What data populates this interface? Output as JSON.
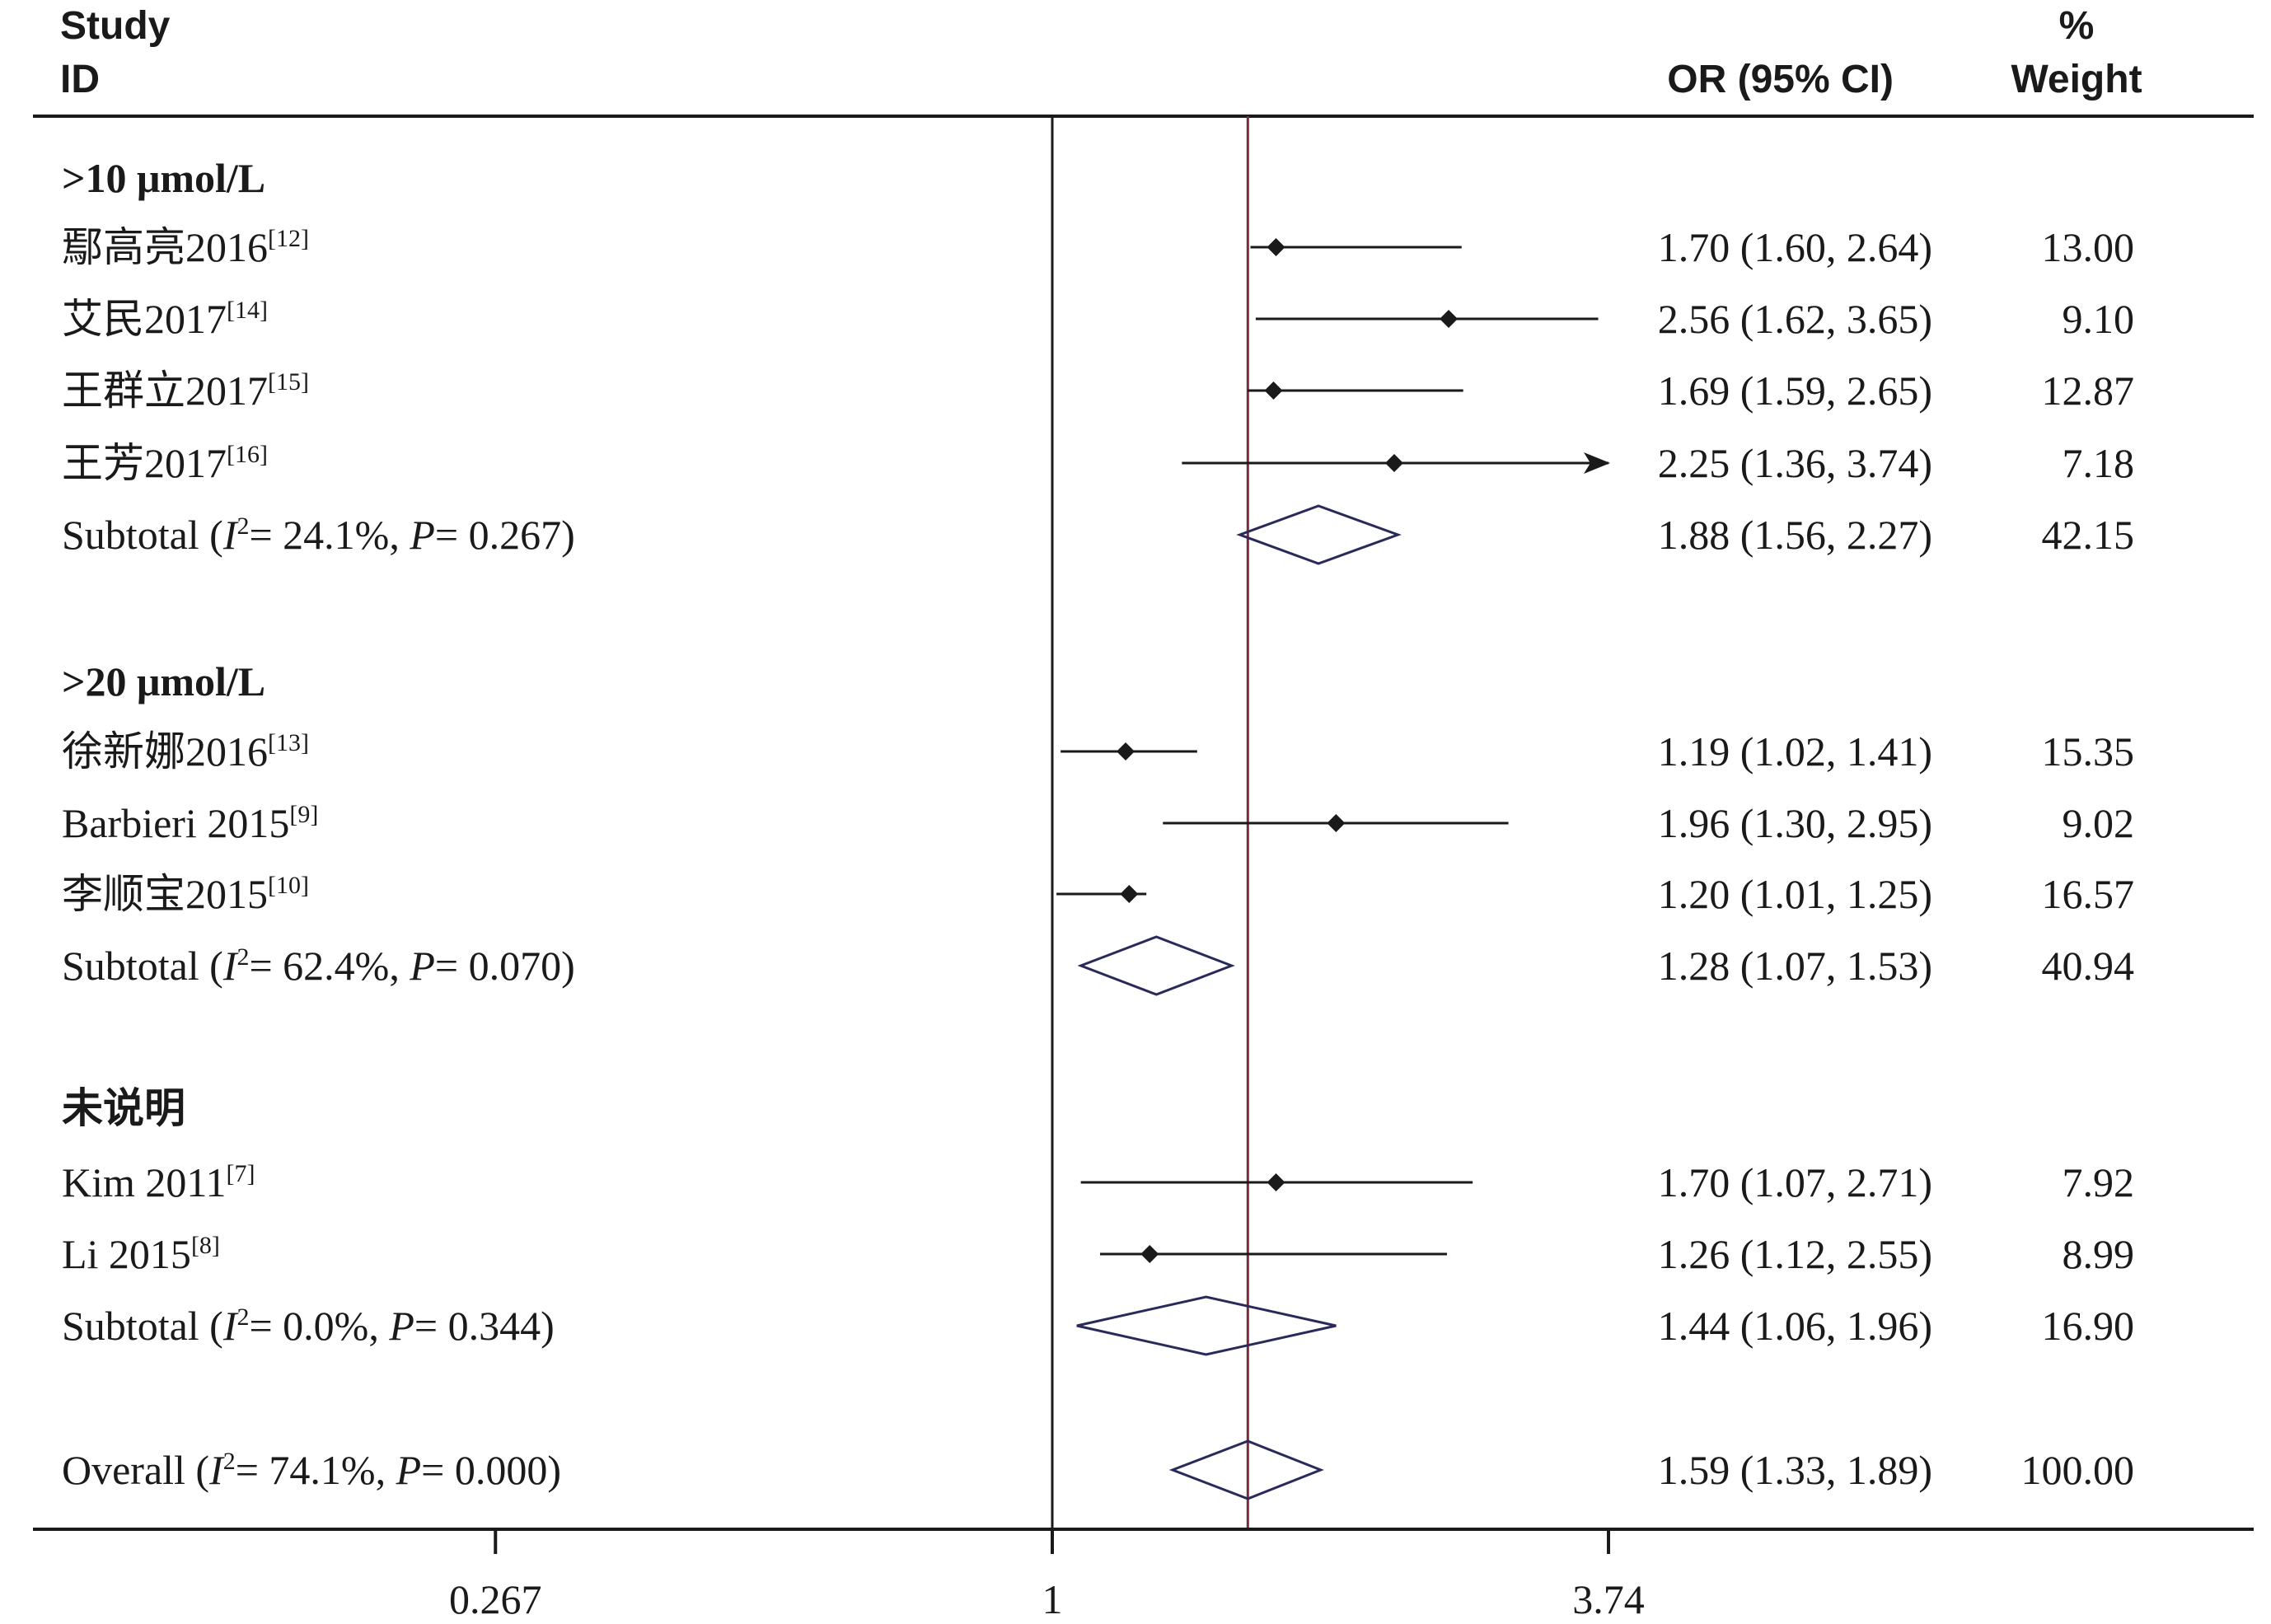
{
  "header": {
    "study_line1": "Study",
    "study_line2": "ID",
    "or_col": "OR (95% CI)",
    "weight_line1": "%",
    "weight_line2": "Weight"
  },
  "colors": {
    "ink": "#1a1a1a",
    "diamond_stroke": "#2a2a5a",
    "overall_line": "#7b2a3a"
  },
  "chart_data": {
    "type": "forest",
    "title": "",
    "xlabel": "",
    "ylabel": "",
    "x_ticks": [
      "0.267",
      "1",
      "3.74"
    ],
    "x_scale": "log",
    "xlim": [
      0.267,
      3.74
    ],
    "null_line": 1,
    "overall_estimate": 1.59,
    "groups": [
      {
        "name": ">10 μmol/L",
        "studies": [
          {
            "label": "鄢高亮2016",
            "ref": "[12]",
            "or": 1.7,
            "lo": 1.6,
            "hi": 2.64,
            "or_text": "1.70 (1.60, 2.64)",
            "weight": "13.00"
          },
          {
            "label": "艾民2017",
            "ref": "[14]",
            "or": 2.56,
            "lo": 1.62,
            "hi": 3.65,
            "or_text": "2.56 (1.62, 3.65)",
            "weight": "9.10"
          },
          {
            "label": "王群立2017",
            "ref": "[15]",
            "or": 1.69,
            "lo": 1.59,
            "hi": 2.65,
            "or_text": "1.69 (1.59, 2.65)",
            "weight": "12.87"
          },
          {
            "label": "王芳2017",
            "ref": "[16]",
            "or": 2.25,
            "lo": 1.36,
            "hi": 3.74,
            "or_text": "2.25 (1.36, 3.74)",
            "weight": "7.18",
            "arrow": true
          }
        ],
        "subtotal": {
          "prefix": "Subtotal  (",
          "i2": "= 24.1%, ",
          "p": "= 0.267)",
          "or": 1.88,
          "lo": 1.56,
          "hi": 2.27,
          "or_text": "1.88 (1.56, 2.27)",
          "weight": "42.15"
        }
      },
      {
        "name": ">20 μmol/L",
        "studies": [
          {
            "label": "徐新娜2016",
            "ref": "[13]",
            "or": 1.19,
            "lo": 1.02,
            "hi": 1.41,
            "or_text": "1.19 (1.02, 1.41)",
            "weight": "15.35"
          },
          {
            "label": "Barbieri 2015",
            "ref": "[9]",
            "or": 1.96,
            "lo": 1.3,
            "hi": 2.95,
            "or_text": "1.96 (1.30, 2.95)",
            "weight": "9.02"
          },
          {
            "label": "李顺宝2015",
            "ref": "[10]",
            "or": 1.2,
            "lo": 1.01,
            "hi": 1.25,
            "or_text": "1.20 (1.01, 1.25)",
            "weight": "16.57"
          }
        ],
        "subtotal": {
          "prefix": "Subtotal  (",
          "i2": "= 62.4%, ",
          "p": "= 0.070)",
          "or": 1.28,
          "lo": 1.07,
          "hi": 1.53,
          "or_text": "1.28 (1.07, 1.53)",
          "weight": "40.94"
        }
      },
      {
        "name": "未说明",
        "studies": [
          {
            "label": "Kim 2011",
            "ref": "[7]",
            "or": 1.7,
            "lo": 1.07,
            "hi": 2.71,
            "or_text": "1.70 (1.07, 2.71)",
            "weight": "7.92"
          },
          {
            "label": "Li 2015",
            "ref": "[8]",
            "or": 1.26,
            "lo": 1.12,
            "hi": 2.55,
            "or_text": "1.26 (1.12, 2.55)",
            "weight": "8.99"
          }
        ],
        "subtotal": {
          "prefix": "Subtotal  (",
          "i2": "= 0.0%, ",
          "p": "= 0.344)",
          "or": 1.44,
          "lo": 1.06,
          "hi": 1.96,
          "or_text": "1.44 (1.06, 1.96)",
          "weight": "16.90"
        }
      }
    ],
    "overall": {
      "prefix": "Overall  (",
      "i2": "= 74.1%, ",
      "p": "= 0.000)",
      "or": 1.59,
      "lo": 1.33,
      "hi": 1.89,
      "or_text": "1.59 (1.33, 1.89)",
      "weight": "100.00"
    }
  }
}
